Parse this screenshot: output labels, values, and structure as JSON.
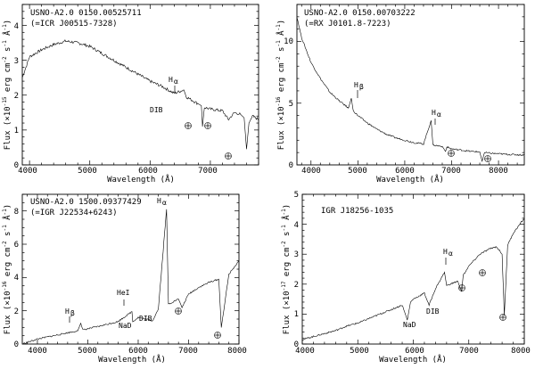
{
  "figure": {
    "panels": [
      {
        "id": "p1",
        "title_lines": [
          "USNO-A2.0 0150.00525711",
          "(=ICR J00515-7328)"
        ],
        "xlabel": "Wavelength (Å)",
        "ylabel_parts": [
          "Flux (×10",
          "-15",
          " erg cm",
          "-2",
          " s",
          "-1",
          " Å",
          "-1",
          ")"
        ],
        "xticks": [
          "4000",
          "5000",
          "6000",
          "7000"
        ],
        "yticks": [
          "0",
          "1",
          "2",
          "3",
          "4"
        ],
        "annotations": [
          "H",
          "α",
          "DIB"
        ]
      },
      {
        "id": "p2",
        "title_lines": [
          "USNO-A2.0 0150.00703222",
          "(=RX J0101.8-7223)"
        ],
        "xlabel": "Wavelength (Å)",
        "ylabel_parts": [
          "Flux (×10",
          "-16",
          " erg cm",
          "-2",
          " s",
          "-1",
          " Å",
          "-1",
          ")"
        ],
        "xticks": [
          "4000",
          "5000",
          "6000",
          "7000",
          "8000"
        ],
        "yticks": [
          "0",
          "5",
          "10"
        ],
        "annotations": [
          "H",
          "β",
          "H",
          "α"
        ]
      },
      {
        "id": "p3",
        "title_lines": [
          "USNO-A2.0 1500.09377429",
          "(=IGR J22534+6243)"
        ],
        "xlabel": "Wavelength (Å)",
        "ylabel_parts": [
          "Flux (×10",
          "-16",
          " erg cm",
          "-2",
          " s",
          "-1",
          " Å",
          "-1",
          ")"
        ],
        "xticks": [
          "4000",
          "5000",
          "6000",
          "7000",
          "8000"
        ],
        "yticks": [
          "0",
          "2",
          "4",
          "6",
          "8"
        ],
        "annotations": [
          "H",
          "β",
          "HeI",
          "NaD",
          "DIB",
          "H",
          "α"
        ]
      },
      {
        "id": "p4",
        "title_lines": [
          "IGR J18256-1035"
        ],
        "xlabel": "Wavelength (Å)",
        "ylabel_parts": [
          "Flux (×10",
          "-17",
          " erg cm",
          "-2",
          " s",
          "-1",
          " Å",
          "-1",
          ")"
        ],
        "xticks": [
          "4000",
          "5000",
          "6000",
          "7000",
          "8000"
        ],
        "yticks": [
          "0",
          "1",
          "2",
          "3",
          "4",
          "5"
        ],
        "annotations": [
          "H",
          "α",
          "NaD",
          "DIB"
        ]
      }
    ]
  },
  "chart_data": [
    {
      "type": "line",
      "title": "USNO-A2.0 0150.00525711 (=ICR J00515-7328)",
      "xlabel": "Wavelength (Å)",
      "ylabel": "Flux (×10^-15 erg cm^-2 s^-1 Å^-1)",
      "xlim": [
        3880,
        7800
      ],
      "ylim": [
        0,
        4.6
      ],
      "x": [
        3880,
        4000,
        4200,
        4400,
        4600,
        4800,
        5000,
        5200,
        5400,
        5600,
        5800,
        6000,
        6200,
        6400,
        6560,
        6600,
        6800,
        6850,
        6870,
        6900,
        7000,
        7200,
        7300,
        7400,
        7500,
        7560,
        7600,
        7640,
        7700,
        7800
      ],
      "y": [
        2.5,
        3.1,
        3.3,
        3.45,
        3.55,
        3.5,
        3.4,
        3.2,
        3.0,
        2.8,
        2.6,
        2.4,
        2.25,
        2.05,
        2.15,
        1.95,
        1.75,
        1.7,
        1.1,
        1.65,
        1.6,
        1.55,
        1.3,
        1.5,
        1.45,
        1.35,
        0.45,
        1.2,
        1.4,
        1.3
      ],
      "features": [
        {
          "label": "Hα",
          "x": 6563
        },
        {
          "label": "DIB",
          "x": 6284
        },
        {
          "label": "telluric",
          "x": 6870
        },
        {
          "label": "telluric",
          "x": 7200
        },
        {
          "label": "telluric",
          "x": 7600
        }
      ]
    },
    {
      "type": "line",
      "title": "USNO-A2.0 0150.00703222 (=RX J0101.8-7223)",
      "xlabel": "Wavelength (Å)",
      "ylabel": "Flux (×10^-16 erg cm^-2 s^-1 Å^-1)",
      "xlim": [
        3700,
        8550
      ],
      "ylim": [
        0,
        13
      ],
      "x": [
        3700,
        3800,
        4000,
        4200,
        4400,
        4600,
        4800,
        4861,
        4900,
        5000,
        5200,
        5400,
        5600,
        5800,
        6000,
        6200,
        6400,
        6563,
        6600,
        6800,
        6870,
        6900,
        7000,
        7200,
        7400,
        7600,
        7650,
        7700,
        7800,
        8000,
        8200,
        8550
      ],
      "y": [
        12.0,
        10.3,
        8.3,
        7.0,
        5.9,
        5.2,
        4.6,
        5.4,
        4.4,
        4.0,
        3.4,
        2.9,
        2.5,
        2.2,
        2.0,
        1.8,
        1.7,
        3.6,
        1.6,
        1.5,
        1.1,
        1.45,
        1.3,
        1.2,
        1.1,
        1.05,
        0.3,
        1.0,
        0.95,
        0.9,
        0.85,
        0.8
      ],
      "features": [
        {
          "label": "Hβ",
          "x": 4861
        },
        {
          "label": "Hα",
          "x": 6563
        },
        {
          "label": "telluric",
          "x": 6870
        },
        {
          "label": "telluric",
          "x": 7600
        }
      ]
    },
    {
      "type": "line",
      "title": "USNO-A2.0 1500.09377429 (=IGR J22534+6243)",
      "xlabel": "Wavelength (Å)",
      "ylabel": "Flux (×10^-16 erg cm^-2 s^-1 Å^-1)",
      "xlim": [
        3700,
        8000
      ],
      "ylim": [
        0,
        9
      ],
      "x": [
        3700,
        4000,
        4400,
        4800,
        4861,
        4900,
        5200,
        5600,
        5876,
        5893,
        6000,
        6284,
        6400,
        6563,
        6600,
        6800,
        6870,
        7000,
        7200,
        7400,
        7600,
        7650,
        7800,
        8000
      ],
      "y": [
        0.0,
        0.3,
        0.55,
        0.8,
        1.25,
        0.85,
        1.05,
        1.35,
        1.95,
        1.35,
        1.6,
        1.4,
        2.1,
        8.1,
        2.4,
        2.7,
        2.2,
        3.0,
        3.4,
        3.7,
        3.9,
        1.0,
        4.2,
        5.0
      ],
      "features": [
        {
          "label": "Hβ",
          "x": 4861
        },
        {
          "label": "HeI",
          "x": 5876
        },
        {
          "label": "NaD",
          "x": 5893
        },
        {
          "label": "DIB",
          "x": 6284
        },
        {
          "label": "Hα",
          "x": 6563
        },
        {
          "label": "telluric",
          "x": 6870
        },
        {
          "label": "telluric",
          "x": 7600
        }
      ]
    },
    {
      "type": "line",
      "title": "IGR J18256-1035",
      "xlabel": "Wavelength (Å)",
      "ylabel": "Flux (×10^-17 erg cm^-2 s^-1 Å^-1)",
      "xlim": [
        4000,
        8000
      ],
      "ylim": [
        0,
        5
      ],
      "x": [
        4000,
        4200,
        4400,
        4600,
        4800,
        5000,
        5200,
        5400,
        5600,
        5800,
        5893,
        5950,
        6000,
        6200,
        6284,
        6400,
        6563,
        6600,
        6800,
        6870,
        6900,
        7000,
        7200,
        7400,
        7500,
        7600,
        7640,
        7700,
        7800,
        8000
      ],
      "y": [
        0.15,
        0.25,
        0.35,
        0.45,
        0.6,
        0.7,
        0.85,
        1.0,
        1.15,
        1.3,
        0.8,
        1.4,
        1.5,
        1.7,
        1.3,
        1.85,
        2.4,
        1.95,
        2.1,
        1.75,
        2.3,
        2.6,
        3.0,
        3.2,
        3.25,
        3.0,
        0.95,
        3.3,
        3.7,
        4.2
      ],
      "features": [
        {
          "label": "Hα",
          "x": 6563
        },
        {
          "label": "NaD",
          "x": 5893
        },
        {
          "label": "DIB",
          "x": 6284
        },
        {
          "label": "telluric",
          "x": 6870
        },
        {
          "label": "telluric",
          "x": 7200
        },
        {
          "label": "telluric",
          "x": 7600
        }
      ]
    }
  ]
}
